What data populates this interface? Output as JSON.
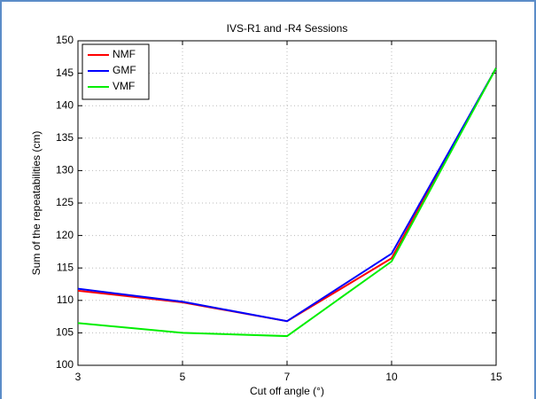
{
  "chart_data": {
    "type": "line",
    "title": "IVS-R1 and -R4 Sessions",
    "x_label": "Cut off angle (°)",
    "y_label": "Sum of the repeatabilities (cm)",
    "categories": [
      "3",
      "5",
      "7",
      "10",
      "15"
    ],
    "series": [
      {
        "name": "NMF",
        "color": "#ff0000",
        "values": [
          111.5,
          109.7,
          106.8,
          116.5,
          145.8
        ]
      },
      {
        "name": "GMF",
        "color": "#0000ff",
        "values": [
          111.8,
          109.8,
          106.8,
          117.2,
          145.8
        ]
      },
      {
        "name": "VMF",
        "color": "#00ee00",
        "values": [
          106.5,
          105.0,
          104.5,
          116.0,
          145.8
        ]
      }
    ],
    "ylim": [
      100,
      150
    ],
    "yticks": [
      100,
      105,
      110,
      115,
      120,
      125,
      130,
      135,
      140,
      145,
      150
    ],
    "grid": true,
    "legend": "upper-left"
  }
}
